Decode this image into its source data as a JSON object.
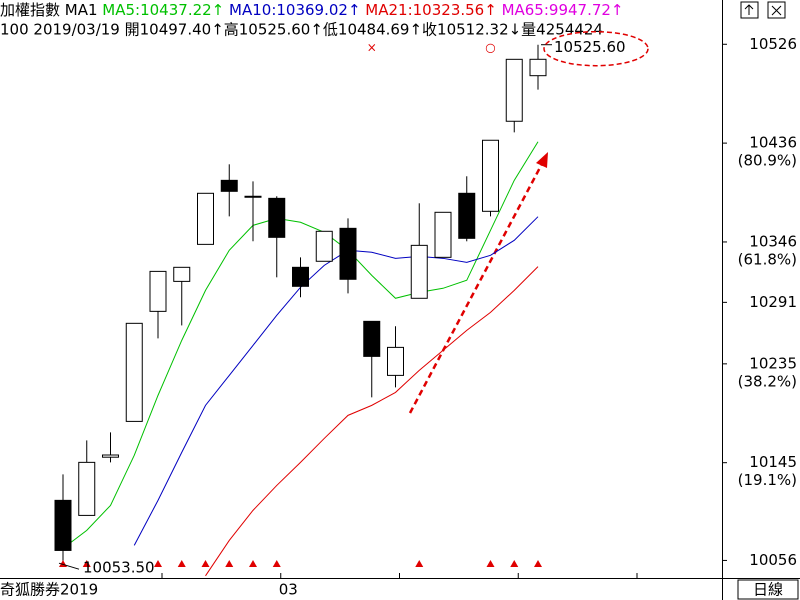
{
  "chart_data": {
    "type": "candlestick",
    "title": "加權指數 MA1",
    "quote": "100 2019/03/19 開10497.40↑高10525.60↑低10484.69↑收10512.32↓量4254424",
    "extra_legend": {
      "name": "MA65:9947.72↑",
      "color": "#e000e0"
    },
    "brand_label": "奇狐勝券2019",
    "period_label": "日線",
    "categories": [
      null,
      null,
      null,
      null,
      null,
      null,
      null,
      null,
      null,
      "03",
      null,
      null,
      null,
      null,
      null,
      null,
      null,
      null,
      null,
      null,
      null
    ],
    "open": [
      10110.7,
      10097.0,
      10150.0,
      10182.6,
      10282.8,
      10310.1,
      10343.8,
      10402.1,
      10387.6,
      10385.7,
      10322.9,
      10328.4,
      10358.4,
      10273.7,
      10224.5,
      10294.7,
      10332.0,
      10390.3,
      10373.9,
      10455.9,
      10497.4
    ],
    "high": [
      10134.4,
      10165.3,
      10172.6,
      10271.9,
      10319.2,
      10322.9,
      10390.3,
      10416.7,
      10401.2,
      10387.6,
      10332.0,
      10355.7,
      10367.5,
      10273.7,
      10269.2,
      10381.2,
      10373.0,
      10405.8,
      10438.6,
      10512.3,
      10525.6
    ],
    "low": [
      10053.5,
      10097.0,
      10145.3,
      10182.6,
      10258.2,
      10270.0,
      10343.8,
      10369.3,
      10346.6,
      10313.8,
      10295.6,
      10328.4,
      10299.2,
      10204.5,
      10213.6,
      10294.7,
      10332.0,
      10346.6,
      10369.3,
      10445.8,
      10484.69
    ],
    "close": [
      10065.1,
      10145.3,
      10152.0,
      10271.9,
      10319.2,
      10322.9,
      10390.3,
      10392.1,
      10387.0,
      10350.2,
      10305.6,
      10355.7,
      10312.0,
      10241.8,
      10250.0,
      10342.9,
      10373.0,
      10349.3,
      10438.6,
      10512.3,
      10512.32
    ],
    "series": [
      {
        "name": "MA5:10437.22↑",
        "color": "#00c000",
        "values": [
          10067.0,
          10083.4,
          10106.1,
          10151.7,
          10206.3,
          10256.4,
          10301.9,
          10338.4,
          10361.1,
          10367.5,
          10363.9,
          10354.8,
          10338.4,
          10315.6,
          10294.7,
          10300.1,
          10303.8,
          10311.1,
          10356.6,
          10402.1,
          10437.22
        ]
      },
      {
        "name": "MA10:10369.02↑",
        "color": "#0000c0",
        "values": [
          null,
          null,
          null,
          10069.7,
          10110.7,
          10154.4,
          10197.2,
          10224.5,
          10251.8,
          10279.2,
          10304.7,
          10324.7,
          10338.4,
          10336.6,
          10331.1,
          10332.9,
          10331.1,
          10327.4,
          10333.8,
          10347.5,
          10369.02
        ]
      },
      {
        "name": "MA21:10323.56↑",
        "color": "#e00000",
        "values": [
          null,
          null,
          null,
          null,
          null,
          null,
          10042.0,
          10074.2,
          10101.6,
          10124.3,
          10145.3,
          10167.1,
          10188.1,
          10197.2,
          10209.0,
          10229.1,
          10247.3,
          10265.5,
          10281.9,
          10301.9,
          10323.56
        ]
      }
    ],
    "signals": [
      true,
      true,
      false,
      false,
      true,
      true,
      true,
      true,
      true,
      true,
      false,
      false,
      false,
      false,
      false,
      true,
      false,
      false,
      true,
      true,
      true
    ],
    "top_marks": [
      null,
      null,
      null,
      null,
      null,
      null,
      null,
      null,
      null,
      null,
      null,
      null,
      null,
      "×",
      null,
      null,
      null,
      null,
      "○",
      null,
      null
    ],
    "annotations": [
      {
        "index": 20,
        "value": 10525.6,
        "label": "10525.60"
      },
      {
        "index": 0,
        "value": 10053.5,
        "label": "10053.50"
      }
    ],
    "ylim": [
      10040,
      10539
    ],
    "yticks": [
      10526,
      10436,
      10346,
      10291,
      10235,
      10145,
      10056
    ],
    "fib_levels": [
      {
        "value": 10436,
        "label": "(80.9%)"
      },
      {
        "value": 10346,
        "label": "(61.8%)"
      },
      {
        "value": 10235,
        "label": "(38.2%)"
      },
      {
        "value": 10145,
        "label": "(19.1%)"
      }
    ]
  }
}
